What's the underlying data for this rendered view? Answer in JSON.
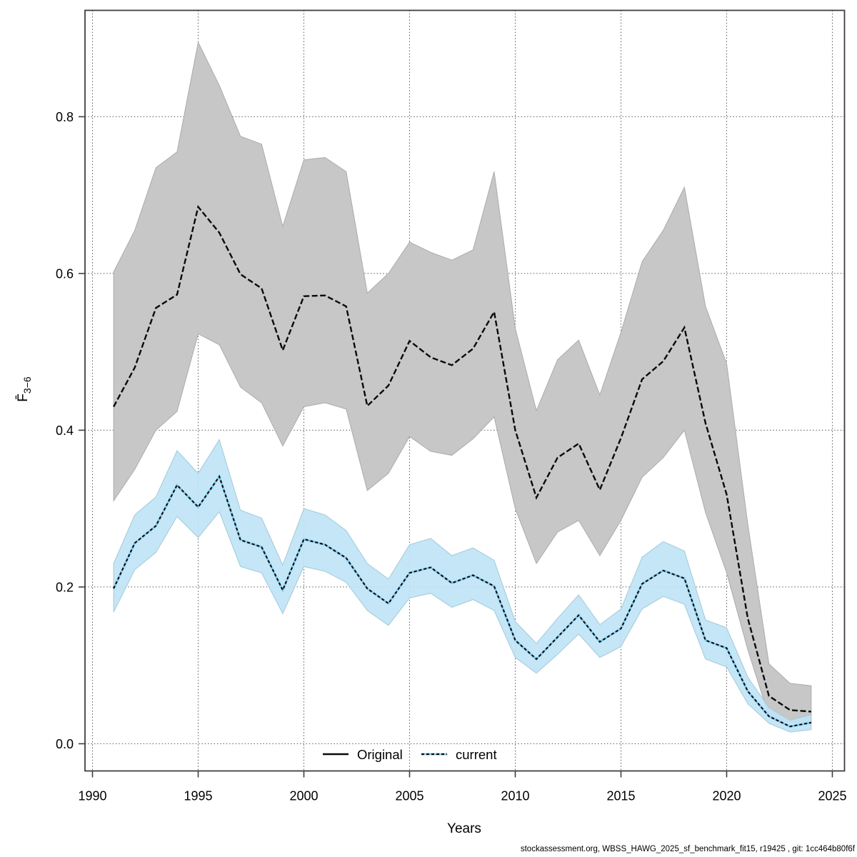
{
  "labels": {
    "xlabel": "Years",
    "ylabel_main": "F̄",
    "ylabel_sub": "3−6"
  },
  "legend": {
    "position": "bottom-center-inside",
    "items": [
      {
        "label": "Original",
        "style": "solid"
      },
      {
        "label": "current",
        "style": "dashed"
      }
    ]
  },
  "footer": {
    "text": "stockassessment.org, WBSS_HAWG_2025_sf_benchmark_fit15, r19425 , git: 1cc464b80f6f"
  },
  "chart_data": {
    "type": "line",
    "title": "",
    "xlabel": "Years",
    "ylabel": "F̄3−6",
    "grid": true,
    "grid_style": "dotted",
    "legend_position": "bottom-center",
    "x_ticks": [
      1990,
      1995,
      2000,
      2005,
      2010,
      2015,
      2020,
      2025
    ],
    "y_ticks": [
      0.0,
      0.2,
      0.4,
      0.6,
      0.8
    ],
    "xlim": [
      1989.645,
      2025.575
    ],
    "ylim": [
      -0.0347,
      0.9357
    ],
    "x": [
      1991,
      1992,
      1993,
      1994,
      1995,
      1996,
      1997,
      1998,
      1999,
      2000,
      2001,
      2002,
      2003,
      2004,
      2005,
      2006,
      2007,
      2008,
      2009,
      2010,
      2011,
      2012,
      2013,
      2014,
      2015,
      2016,
      2017,
      2018,
      2019,
      2020,
      2021,
      2022,
      2023,
      2024
    ],
    "series": [
      {
        "name": "Original",
        "line_color": "#0a0a0a",
        "band_color": "#c7c7c7",
        "band_edge_color": "#ababab",
        "values": [
          0.43,
          0.48,
          0.556,
          0.573,
          0.685,
          0.652,
          0.599,
          0.581,
          0.502,
          0.571,
          0.572,
          0.558,
          0.431,
          0.457,
          0.514,
          0.493,
          0.483,
          0.504,
          0.551,
          0.4,
          0.314,
          0.365,
          0.383,
          0.324,
          0.39,
          0.465,
          0.488,
          0.531,
          0.409,
          0.318,
          0.16,
          0.061,
          0.043,
          0.041
        ],
        "ci_upper": [
          0.602,
          0.655,
          0.735,
          0.755,
          0.895,
          0.84,
          0.775,
          0.765,
          0.66,
          0.745,
          0.748,
          0.73,
          0.575,
          0.6,
          0.64,
          0.627,
          0.617,
          0.63,
          0.73,
          0.53,
          0.425,
          0.49,
          0.515,
          0.445,
          0.525,
          0.615,
          0.655,
          0.71,
          0.558,
          0.485,
          0.28,
          0.102,
          0.077,
          0.074
        ],
        "ci_lower": [
          0.31,
          0.35,
          0.4,
          0.424,
          0.523,
          0.509,
          0.455,
          0.435,
          0.38,
          0.43,
          0.435,
          0.427,
          0.323,
          0.345,
          0.392,
          0.373,
          0.368,
          0.389,
          0.417,
          0.3,
          0.23,
          0.27,
          0.285,
          0.24,
          0.285,
          0.34,
          0.365,
          0.4,
          0.295,
          0.218,
          0.12,
          0.035,
          0.027,
          0.028
        ]
      },
      {
        "name": "current",
        "line_color": "#7fc9ee",
        "dash_color": "#0d0d0d",
        "band_color": "#bee3f5",
        "band_edge_color": "#a3c9da",
        "values": [
          0.198,
          0.256,
          0.278,
          0.33,
          0.302,
          0.341,
          0.26,
          0.251,
          0.196,
          0.261,
          0.254,
          0.237,
          0.198,
          0.179,
          0.218,
          0.225,
          0.205,
          0.215,
          0.201,
          0.132,
          0.108,
          0.136,
          0.164,
          0.13,
          0.147,
          0.204,
          0.221,
          0.211,
          0.132,
          0.122,
          0.067,
          0.035,
          0.022,
          0.027
        ],
        "ci_upper": [
          0.23,
          0.292,
          0.315,
          0.374,
          0.345,
          0.388,
          0.298,
          0.288,
          0.228,
          0.3,
          0.292,
          0.272,
          0.23,
          0.21,
          0.254,
          0.262,
          0.24,
          0.25,
          0.234,
          0.156,
          0.128,
          0.16,
          0.19,
          0.152,
          0.172,
          0.238,
          0.258,
          0.246,
          0.158,
          0.148,
          0.085,
          0.046,
          0.03,
          0.037
        ],
        "ci_lower": [
          0.168,
          0.222,
          0.244,
          0.29,
          0.263,
          0.296,
          0.226,
          0.218,
          0.166,
          0.226,
          0.22,
          0.206,
          0.17,
          0.151,
          0.186,
          0.192,
          0.174,
          0.184,
          0.17,
          0.11,
          0.09,
          0.114,
          0.14,
          0.11,
          0.124,
          0.172,
          0.188,
          0.178,
          0.108,
          0.098,
          0.051,
          0.026,
          0.015,
          0.018
        ]
      }
    ]
  }
}
